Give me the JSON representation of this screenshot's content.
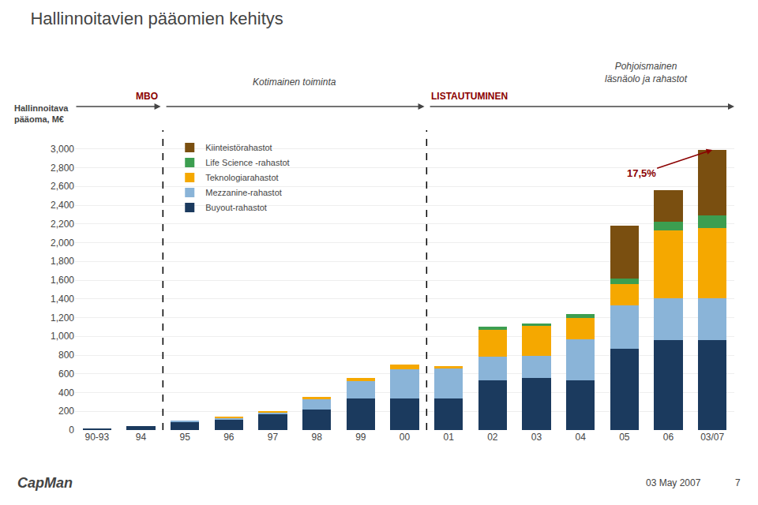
{
  "chart_data": {
    "type": "bar",
    "stacked": true,
    "title": "Hallinnoitavien pääomien kehitys",
    "ylabel": "Hallinnoitava\npääoma, M€",
    "categories": [
      "90-93",
      "94",
      "95",
      "96",
      "97",
      "98",
      "99",
      "00",
      "01",
      "02",
      "03",
      "04",
      "05",
      "06",
      "03/07"
    ],
    "series": [
      {
        "name": "Buyout-rahastot",
        "color": "#1b3a5e",
        "values": [
          20,
          45,
          90,
          110,
          175,
          215,
          340,
          340,
          340,
          530,
          560,
          530,
          870,
          960,
          960
        ]
      },
      {
        "name": "Mezzanine-rahastot",
        "color": "#8ab4d8",
        "values": [
          0,
          0,
          10,
          20,
          15,
          120,
          185,
          310,
          320,
          250,
          230,
          440,
          460,
          450,
          450
        ]
      },
      {
        "name": "Teknologiarahastot",
        "color": "#f5a800",
        "values": [
          0,
          0,
          0,
          5,
          10,
          15,
          30,
          50,
          20,
          290,
          320,
          230,
          230,
          720,
          750
        ]
      },
      {
        "name": "Life Science -rahastot",
        "color": "#3c9e50",
        "values": [
          0,
          0,
          0,
          0,
          0,
          0,
          0,
          0,
          0,
          30,
          30,
          40,
          60,
          90,
          130
        ]
      },
      {
        "name": "Kiinteistörahastot",
        "color": "#7a4f10",
        "values": [
          0,
          0,
          0,
          0,
          0,
          0,
          0,
          0,
          0,
          0,
          0,
          0,
          560,
          340,
          700
        ]
      }
    ],
    "ylim": [
      0,
      3200
    ],
    "yticks": [
      0,
      200,
      400,
      600,
      800,
      {
        "value": 1000,
        "label": "1,000"
      },
      {
        "value": 1200,
        "label": "1,200"
      },
      {
        "value": 1400,
        "label": "1,400"
      },
      {
        "value": 1600,
        "label": "1,600"
      },
      {
        "value": 1800,
        "label": "1,800"
      },
      {
        "value": 2000,
        "label": "2,000"
      },
      {
        "value": 2200,
        "label": "2,200"
      },
      {
        "value": 2400,
        "label": "2,400"
      },
      {
        "value": 2600,
        "label": "2,600"
      },
      {
        "value": 2800,
        "label": "2,800"
      },
      {
        "value": 3000,
        "label": "3,000"
      }
    ],
    "grid": true,
    "legend": "upper left",
    "annotations": [
      {
        "text": "17,5%",
        "color": "#8b0000"
      },
      {
        "text": "MBO",
        "color": "#8b0000"
      },
      {
        "text": "Kotimainen toiminta"
      },
      {
        "text": "LISTAUTUMINEN",
        "color": "#8b0000"
      },
      {
        "text": "Pohjoismainen\nläsnäolo ja rahastot"
      },
      {
        "text": "CapMan"
      },
      {
        "text": "03 May 2007"
      },
      {
        "text": "7"
      }
    ]
  }
}
